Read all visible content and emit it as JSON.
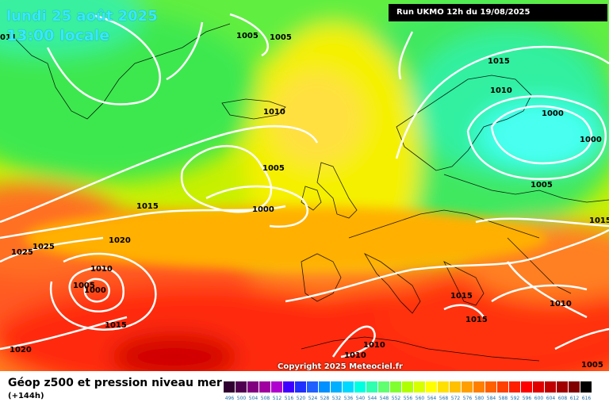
{
  "header": {
    "date_line": "lundi 25 août 2025",
    "time_line": "13:00 locale",
    "run_info": "Run UKMO 12h du 19/08/2025"
  },
  "footer": {
    "parameter_title": "Géop z500 et pression niveau mer",
    "forecast_range": "(+144h)",
    "copyright": "Copyright 2025 Meteociel.fr"
  },
  "isobar_labels": [
    "1005",
    "1005",
    "1015",
    "1010",
    "1010",
    "1000",
    "1000",
    "1005",
    "1005",
    "1000",
    "1015",
    "1015",
    "1020",
    "1025",
    "1025",
    "1010",
    "1005",
    "1000",
    "1015",
    "1015",
    "1015",
    "1010",
    "1020",
    "1010",
    "1010",
    "1005",
    "011"
  ],
  "legend": {
    "values": [
      "496",
      "500",
      "504",
      "508",
      "512",
      "516",
      "520",
      "524",
      "528",
      "532",
      "536",
      "540",
      "544",
      "548",
      "552",
      "556",
      "560",
      "564",
      "568",
      "572",
      "576",
      "580",
      "584",
      "588",
      "592",
      "596",
      "600",
      "604",
      "608",
      "612",
      "616"
    ],
    "colors": [
      "#300030",
      "#500050",
      "#800080",
      "#a000a0",
      "#b000d0",
      "#4000ff",
      "#2030ff",
      "#2060ff",
      "#0090ff",
      "#00b0ff",
      "#00d8ff",
      "#00ffe0",
      "#30ffb0",
      "#60ff70",
      "#80ff30",
      "#b0ff00",
      "#d8ff00",
      "#ffff00",
      "#ffe000",
      "#ffc000",
      "#ffa000",
      "#ff8000",
      "#ff6000",
      "#ff4000",
      "#ff2000",
      "#ff0000",
      "#e00000",
      "#c00000",
      "#a00000",
      "#800000",
      "#000000"
    ]
  }
}
